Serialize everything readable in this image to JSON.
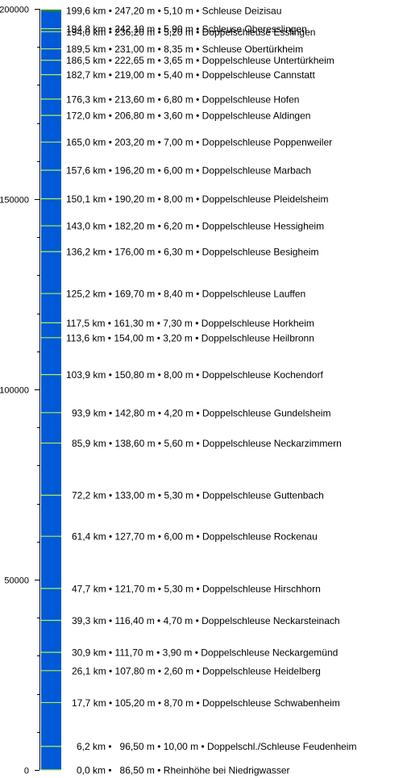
{
  "chart_data": {
    "type": "bar",
    "ylim": [
      0,
      200000
    ],
    "y_ticks": [
      {
        "value": 0,
        "label": "0"
      },
      {
        "value": 50000,
        "label": "50000"
      },
      {
        "value": 100000,
        "label": "100000"
      },
      {
        "value": 150000,
        "label": "150000"
      },
      {
        "value": 200000,
        "label": "200000"
      }
    ],
    "minor_tick_step": 10000,
    "colors": {
      "bar": "#0059d6",
      "lock_line": "#b6f04a",
      "top_line": "#2e8b00"
    },
    "locks": [
      {
        "km": 199.6,
        "label": "199,6 km • 247,20 m • 5,10 m • Schleuse Deizisau"
      },
      {
        "km": 194.8,
        "label": "194,8 km • 242,10 m • 5,90 m • Schleuse Oberesslingen"
      },
      {
        "km": 194.0,
        "label": "194,0 km • 236,20 m • 5,20 m • Doppelschleuse Esslingen"
      },
      {
        "km": 189.5,
        "label": "189,5 km • 231,00 m • 8,35 m • Schleuse Obertürkheim"
      },
      {
        "km": 186.5,
        "label": "186,5 km • 222,65 m • 3,65 m • Doppelschleuse Untertürkheim"
      },
      {
        "km": 182.7,
        "label": "182,7 km • 219,00 m • 5,40 m • Doppelschleuse Cannstatt"
      },
      {
        "km": 176.3,
        "label": "176,3 km • 213,60 m • 6,80 m • Doppelschleuse Hofen"
      },
      {
        "km": 172.0,
        "label": "172,0 km • 206,80 m • 3,60 m • Doppelschleuse Aldingen"
      },
      {
        "km": 165.0,
        "label": "165,0 km • 203,20 m • 7,00 m • Doppelschleuse Poppenweiler"
      },
      {
        "km": 157.6,
        "label": "157,6 km • 196,20 m • 6,00 m • Doppelschleuse Marbach"
      },
      {
        "km": 150.1,
        "label": "150,1 km • 190,20 m • 8,00 m • Doppelschleuse Pleidelsheim"
      },
      {
        "km": 143.0,
        "label": "143,0 km • 182,20 m • 6,20 m • Doppelschleuse Hessigheim"
      },
      {
        "km": 136.2,
        "label": "136,2 km • 176,00 m • 6,30 m • Doppelschleuse Besigheim"
      },
      {
        "km": 125.2,
        "label": "125,2 km • 169,70 m • 8,40 m • Doppelschleuse Lauffen"
      },
      {
        "km": 117.5,
        "label": "117,5 km • 161,30 m • 7,30 m • Doppelschleuse Horkheim"
      },
      {
        "km": 113.6,
        "label": "113,6 km • 154,00 m • 3,20 m • Doppelschleuse Heilbronn"
      },
      {
        "km": 103.9,
        "label": "103,9 km • 150,80 m • 8,00 m • Doppelschleuse Kochendorf"
      },
      {
        "km": 93.9,
        "label": "93,9 km • 142,80 m • 4,20 m • Doppelschleuse Gundelsheim"
      },
      {
        "km": 85.9,
        "label": "85,9 km • 138,60 m • 5,60 m • Doppelschleuse Neckarzimmern"
      },
      {
        "km": 72.2,
        "label": "72,2 km • 133,00 m • 5,30 m • Doppelschleuse Guttenbach"
      },
      {
        "km": 61.4,
        "label": "61,4 km • 127,70 m • 6,00 m • Doppelschleuse Rockenau"
      },
      {
        "km": 47.7,
        "label": "47,7 km • 121,70 m • 5,30 m • Doppelschleuse Hirschhorn"
      },
      {
        "km": 39.3,
        "label": "39,3 km • 116,40 m • 4,70 m • Doppelschleuse Neckarsteinach"
      },
      {
        "km": 30.9,
        "label": "30,9 km • 111,70 m • 3,90 m • Doppelschleuse Neckargemünd"
      },
      {
        "km": 26.1,
        "label": "26,1 km • 107,80 m • 2,60 m • Doppelschleuse Heidelberg"
      },
      {
        "km": 17.7,
        "label": "17,7 km • 105,20 m • 8,70 m • Doppelschleuse Schwabenheim"
      },
      {
        "km": 6.2,
        "label": "6,2 km •   96,50 m • 10,00 m • Doppelschl./Schleuse Feudenheim"
      },
      {
        "km": 0.0,
        "label": "0,0 km •   86,50 m • Rheinhöhe bei Niedrigwasser"
      }
    ]
  }
}
